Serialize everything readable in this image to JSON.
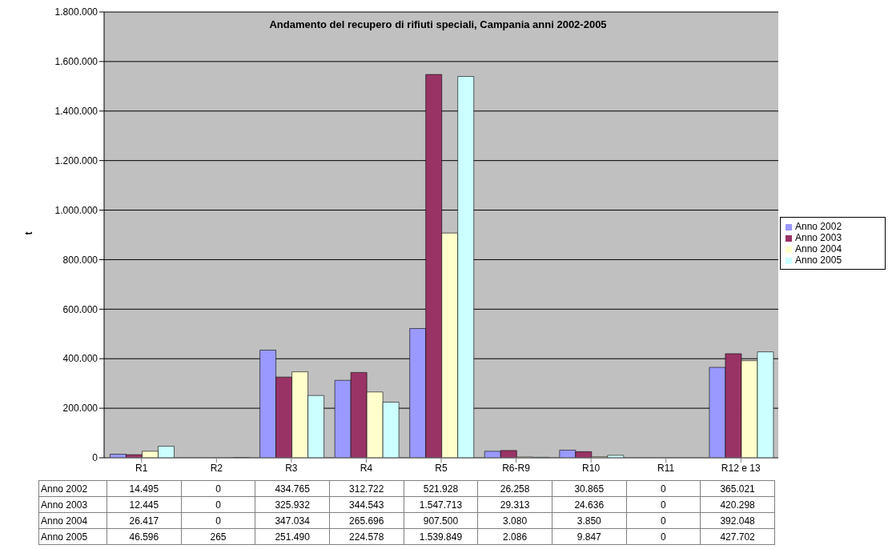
{
  "chart_data": {
    "type": "bar",
    "title": "Andamento del recupero di rifiuti speciali, Campania anni 2002-2005",
    "ylabel": "t",
    "categories": [
      "R1",
      "R2",
      "R3",
      "R4",
      "R5",
      "R6-R9",
      "R10",
      "R11",
      "R12 e 13"
    ],
    "series": [
      {
        "name": "Anno 2002",
        "color": "#9999ff",
        "values": [
          14495,
          0,
          434765,
          312722,
          521928,
          26258,
          30865,
          0,
          365021
        ],
        "value_labels": [
          "14.495",
          "0",
          "434.765",
          "312.722",
          "521.928",
          "26.258",
          "30.865",
          "0",
          "365.021"
        ]
      },
      {
        "name": "Anno 2003",
        "color": "#993366",
        "values": [
          12445,
          0,
          325932,
          344543,
          1547713,
          29313,
          24636,
          0,
          420298
        ],
        "value_labels": [
          "12.445",
          "0",
          "325.932",
          "344.543",
          "1.547.713",
          "29.313",
          "24.636",
          "0",
          "420.298"
        ]
      },
      {
        "name": "Anno 2004",
        "color": "#ffffcc",
        "values": [
          26417,
          0,
          347034,
          265696,
          907500,
          3080,
          3850,
          0,
          392048
        ],
        "value_labels": [
          "26.417",
          "0",
          "347.034",
          "265.696",
          "907.500",
          "3.080",
          "3.850",
          "0",
          "392.048"
        ]
      },
      {
        "name": "Anno 2005",
        "color": "#ccffff",
        "values": [
          46596,
          265,
          251490,
          224578,
          1539849,
          2086,
          9847,
          0,
          427702
        ],
        "value_labels": [
          "46.596",
          "265",
          "251.490",
          "224.578",
          "1.539.849",
          "2.086",
          "9.847",
          "0",
          "427.702"
        ]
      }
    ],
    "ylim": [
      0,
      1800000
    ],
    "yticks": [
      0,
      {
        "value": 200000,
        "label": "200.000"
      },
      {
        "value": 400000,
        "label": "400.000"
      },
      {
        "value": 600000,
        "label": "600.000"
      },
      {
        "value": 800000,
        "label": "800.000"
      },
      {
        "value": 1000000,
        "label": "1.000.000"
      },
      {
        "value": 1200000,
        "label": "1.200.000"
      },
      {
        "value": 1400000,
        "label": "1.400.000"
      },
      {
        "value": 1600000,
        "label": "1.600.000"
      },
      {
        "value": 1800000,
        "label": "1.800.000"
      }
    ],
    "grid": "y",
    "legend": "right"
  }
}
